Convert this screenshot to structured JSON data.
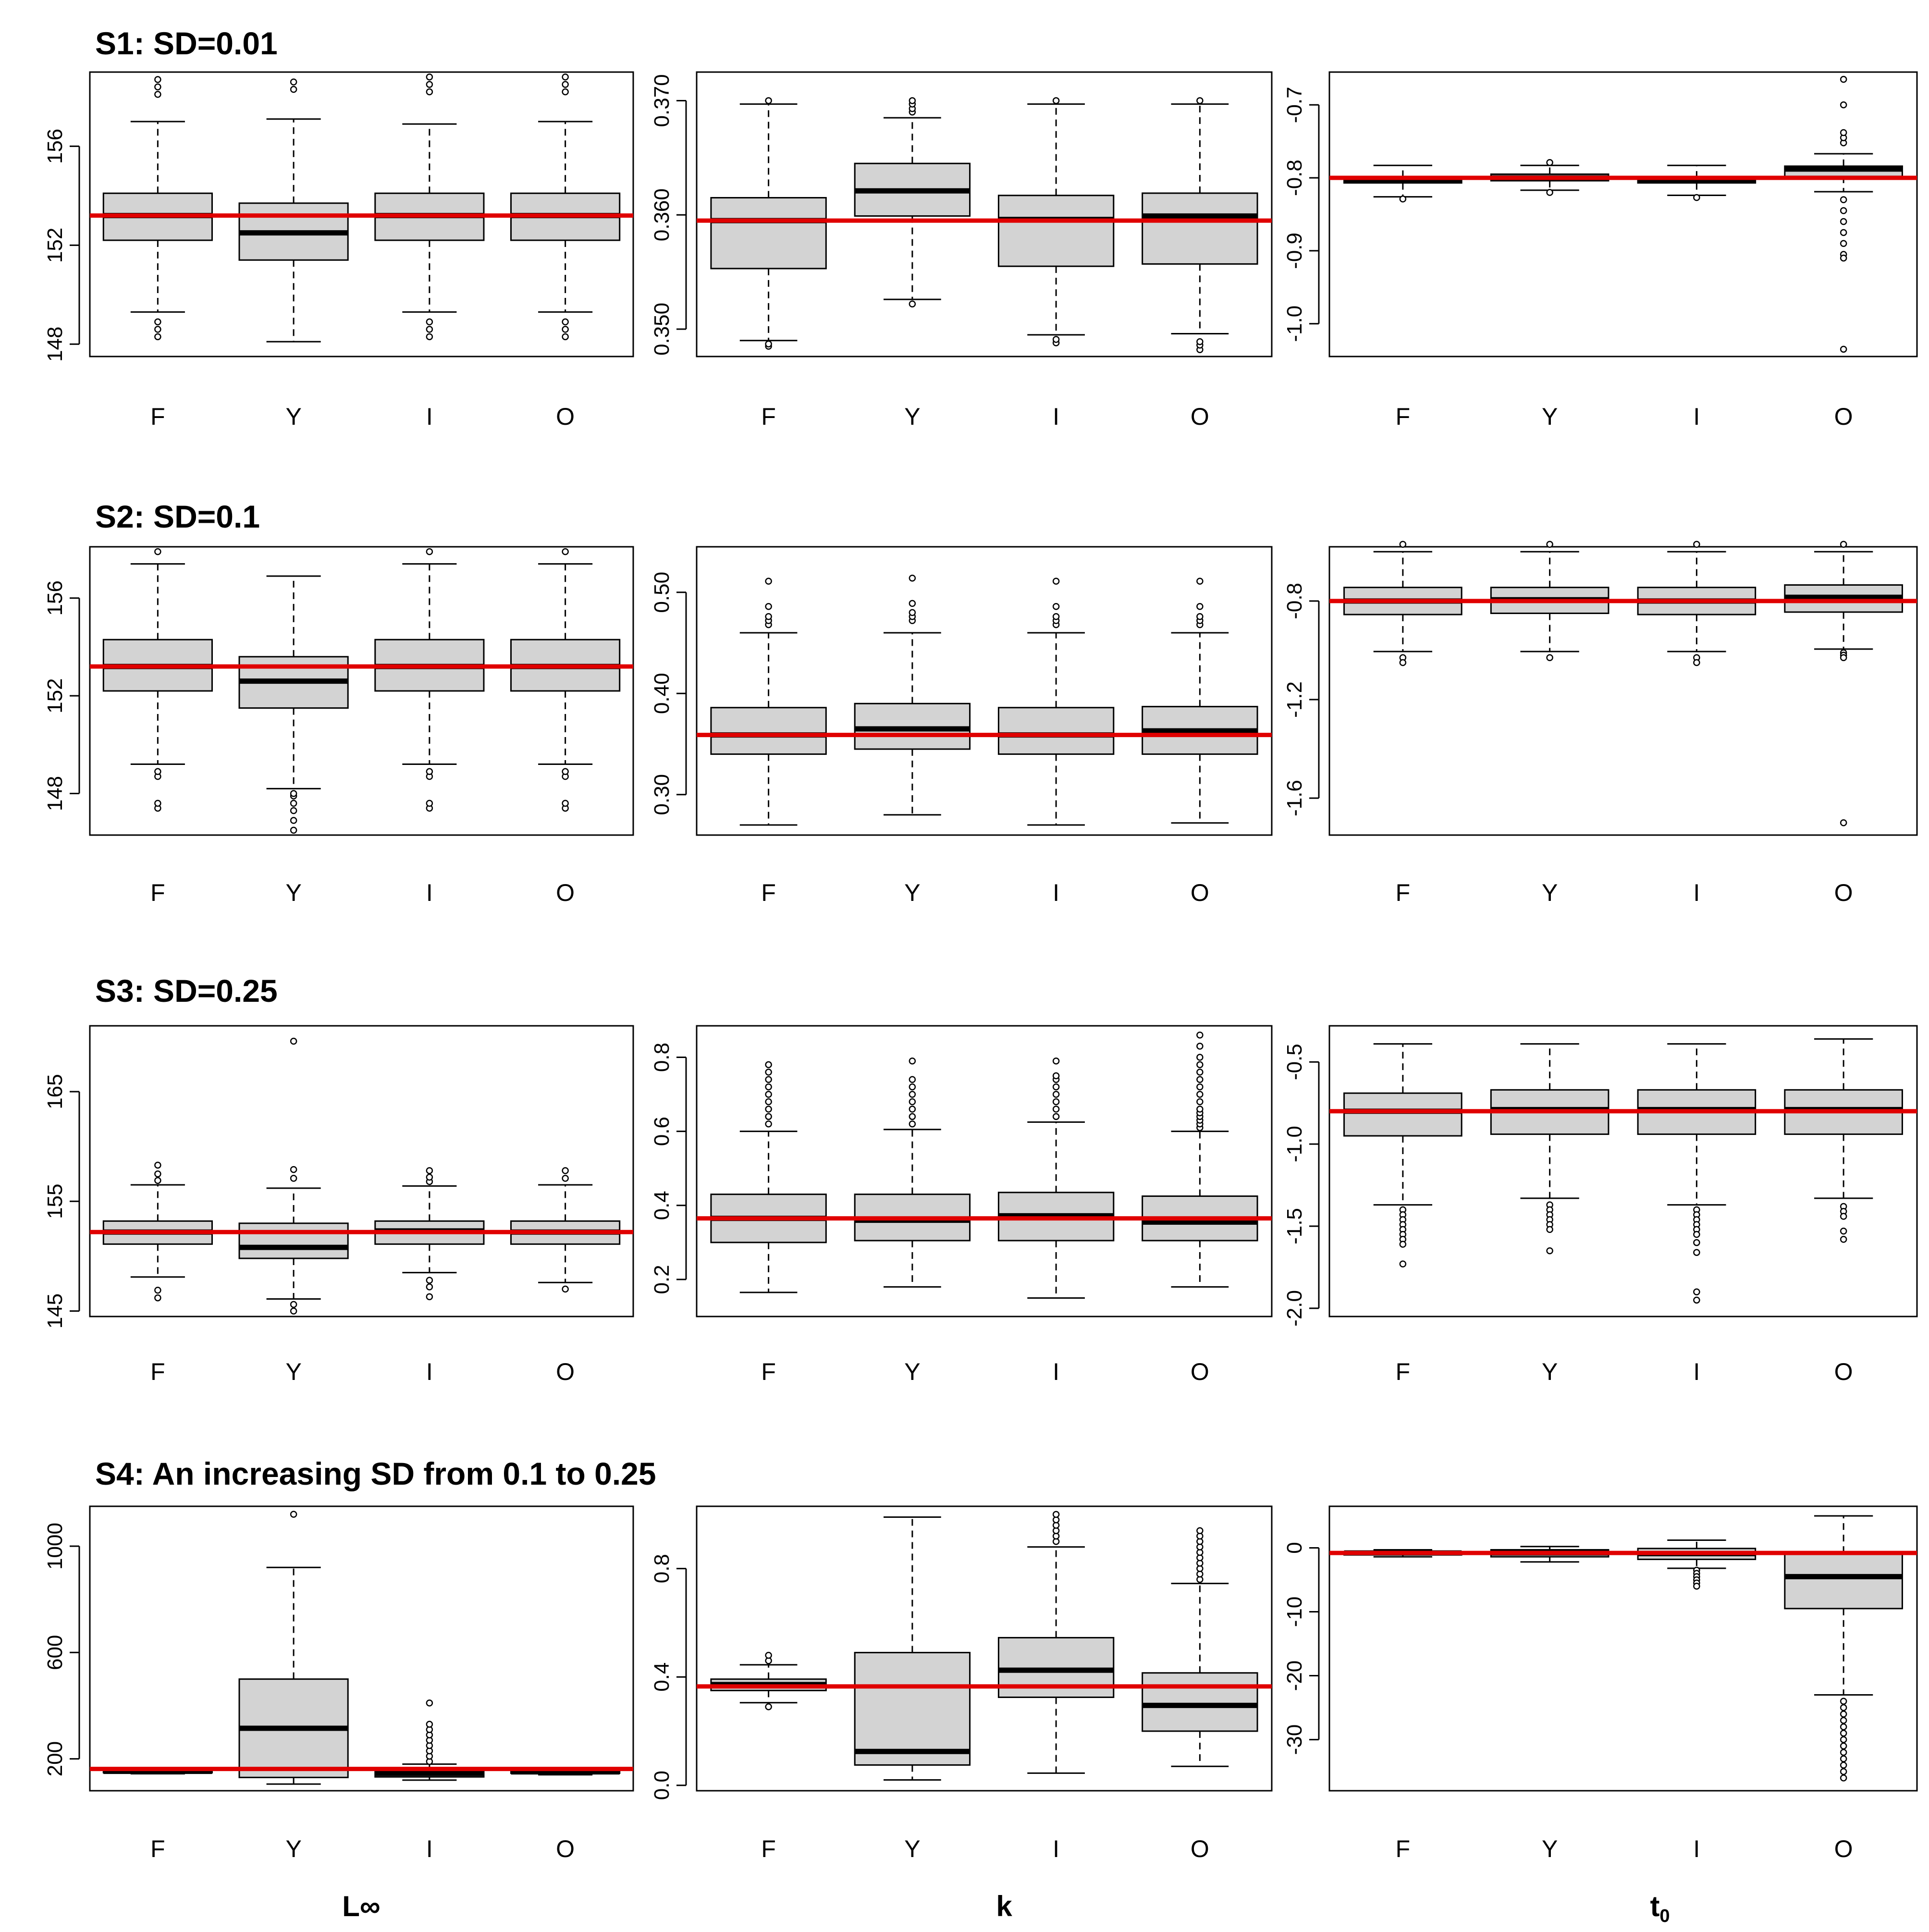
{
  "colors": {
    "box_fill": "#d3d3d3",
    "reference_line": "#e00000",
    "ink": "#000000"
  },
  "column_labels": {
    "linf": "L∞",
    "k": "k",
    "t0": "t",
    "t0_subscript": "0"
  },
  "chart_data": [
    {
      "type": "box",
      "scenario_title": "S1: SD=0.01",
      "categories": [
        "F",
        "Y",
        "I",
        "O"
      ],
      "ylim": [
        147.5,
        159
      ],
      "yticks": [
        148,
        152,
        156
      ],
      "ytick_labels": [
        "148",
        "152",
        "156"
      ],
      "reference": 153.2,
      "boxes": [
        {
          "q1": 152.2,
          "median": 153.2,
          "q3": 154.1,
          "lo": 149.3,
          "hi": 157.0,
          "outliers": [
            148.3,
            148.6,
            148.9,
            158.1,
            158.4,
            158.7
          ]
        },
        {
          "q1": 151.4,
          "median": 152.5,
          "q3": 153.7,
          "lo": 148.1,
          "hi": 157.1,
          "outliers": [
            158.3,
            158.6
          ]
        },
        {
          "q1": 152.2,
          "median": 153.2,
          "q3": 154.1,
          "lo": 149.3,
          "hi": 156.9,
          "outliers": [
            148.3,
            148.6,
            148.9,
            158.2,
            158.5,
            158.8
          ]
        },
        {
          "q1": 152.2,
          "median": 153.2,
          "q3": 154.1,
          "lo": 149.3,
          "hi": 157.0,
          "outliers": [
            148.3,
            148.6,
            148.9,
            158.2,
            158.5,
            158.8
          ]
        }
      ]
    },
    {
      "type": "box",
      "categories": [
        "F",
        "Y",
        "I",
        "O"
      ],
      "ylim": [
        0.3476,
        0.3725
      ],
      "yticks": [
        0.35,
        0.36,
        0.37
      ],
      "ytick_labels": [
        "0.350",
        "0.360",
        "0.370"
      ],
      "reference": 0.3595,
      "boxes": [
        {
          "q1": 0.3553,
          "median": 0.3595,
          "q3": 0.3615,
          "lo": 0.349,
          "hi": 0.3697,
          "outliers": [
            0.3485,
            0.3487,
            0.37
          ]
        },
        {
          "q1": 0.3599,
          "median": 0.3621,
          "q3": 0.3645,
          "lo": 0.3526,
          "hi": 0.3685,
          "outliers": [
            0.3522,
            0.369,
            0.3693,
            0.3697,
            0.37
          ]
        },
        {
          "q1": 0.3555,
          "median": 0.3596,
          "q3": 0.3617,
          "lo": 0.3495,
          "hi": 0.3697,
          "outliers": [
            0.3488,
            0.3491,
            0.37
          ]
        },
        {
          "q1": 0.3557,
          "median": 0.3599,
          "q3": 0.3619,
          "lo": 0.3496,
          "hi": 0.3697,
          "outliers": [
            0.3482,
            0.3486,
            0.3489,
            0.37
          ]
        }
      ]
    },
    {
      "type": "box",
      "categories": [
        "F",
        "Y",
        "I",
        "O"
      ],
      "ylim": [
        -1.045,
        -0.655
      ],
      "yticks": [
        -1.0,
        -0.9,
        -0.8,
        -0.7
      ],
      "ytick_labels": [
        "-1.0",
        "-0.9",
        "-0.8",
        "-0.7"
      ],
      "reference": -0.8,
      "boxes": [
        {
          "q1": -0.807,
          "median": -0.803,
          "q3": -0.799,
          "lo": -0.826,
          "hi": -0.783,
          "outliers": [
            -0.829
          ]
        },
        {
          "q1": -0.804,
          "median": -0.8,
          "q3": -0.795,
          "lo": -0.817,
          "hi": -0.783,
          "outliers": [
            -0.82,
            -0.779
          ]
        },
        {
          "q1": -0.807,
          "median": -0.803,
          "q3": -0.8,
          "lo": -0.824,
          "hi": -0.783,
          "outliers": [
            -0.827
          ]
        },
        {
          "q1": -0.798,
          "median": -0.788,
          "q3": -0.784,
          "lo": -0.819,
          "hi": -0.767,
          "outliers": [
            -0.83,
            -0.845,
            -0.86,
            -0.875,
            -0.89,
            -0.905,
            -0.91,
            -0.752,
            -0.745,
            -0.738,
            -0.7,
            -0.665,
            -1.035
          ]
        }
      ]
    },
    {
      "type": "box",
      "scenario_title": "S2: SD=0.1",
      "categories": [
        "F",
        "Y",
        "I",
        "O"
      ],
      "ylim": [
        146.3,
        158.1
      ],
      "yticks": [
        148,
        152,
        156
      ],
      "ytick_labels": [
        "148",
        "152",
        "156"
      ],
      "reference": 153.2,
      "boxes": [
        {
          "q1": 152.2,
          "median": 153.2,
          "q3": 154.3,
          "lo": 149.2,
          "hi": 157.4,
          "outliers": [
            147.4,
            147.6,
            148.7,
            148.9,
            157.9
          ]
        },
        {
          "q1": 151.5,
          "median": 152.6,
          "q3": 153.6,
          "lo": 148.2,
          "hi": 156.9,
          "outliers": [
            146.5,
            146.9,
            147.3,
            147.6,
            147.9,
            148.0
          ]
        },
        {
          "q1": 152.2,
          "median": 153.2,
          "q3": 154.3,
          "lo": 149.2,
          "hi": 157.4,
          "outliers": [
            147.4,
            147.6,
            148.7,
            148.9,
            157.9
          ]
        },
        {
          "q1": 152.2,
          "median": 153.2,
          "q3": 154.3,
          "lo": 149.2,
          "hi": 157.4,
          "outliers": [
            147.4,
            147.6,
            148.7,
            148.9,
            157.9
          ]
        }
      ]
    },
    {
      "type": "box",
      "categories": [
        "F",
        "Y",
        "I",
        "O"
      ],
      "ylim": [
        0.26,
        0.545
      ],
      "yticks": [
        0.3,
        0.4,
        0.5
      ],
      "ytick_labels": [
        "0.30",
        "0.40",
        "0.50"
      ],
      "reference": 0.359,
      "boxes": [
        {
          "q1": 0.34,
          "median": 0.359,
          "q3": 0.386,
          "lo": 0.27,
          "hi": 0.46,
          "outliers": [
            0.468,
            0.472,
            0.476,
            0.486,
            0.511
          ]
        },
        {
          "q1": 0.345,
          "median": 0.365,
          "q3": 0.39,
          "lo": 0.28,
          "hi": 0.46,
          "outliers": [
            0.472,
            0.476,
            0.48,
            0.489,
            0.514
          ]
        },
        {
          "q1": 0.34,
          "median": 0.359,
          "q3": 0.386,
          "lo": 0.27,
          "hi": 0.46,
          "outliers": [
            0.468,
            0.472,
            0.476,
            0.486,
            0.511
          ]
        },
        {
          "q1": 0.34,
          "median": 0.363,
          "q3": 0.387,
          "lo": 0.272,
          "hi": 0.46,
          "outliers": [
            0.468,
            0.472,
            0.476,
            0.486,
            0.511
          ]
        }
      ]
    },
    {
      "type": "box",
      "categories": [
        "F",
        "Y",
        "I",
        "O"
      ],
      "ylim": [
        -1.75,
        -0.58
      ],
      "yticks": [
        -1.6,
        -1.2,
        -0.8
      ],
      "ytick_labels": [
        "-1.6",
        "-1.2",
        "-0.8"
      ],
      "reference": -0.8,
      "boxes": [
        {
          "q1": -0.855,
          "median": -0.8,
          "q3": -0.745,
          "lo": -1.005,
          "hi": -0.6,
          "outliers": [
            -1.03,
            -1.05,
            -0.57
          ]
        },
        {
          "q1": -0.85,
          "median": -0.795,
          "q3": -0.745,
          "lo": -1.005,
          "hi": -0.6,
          "outliers": [
            -1.03,
            -0.57
          ]
        },
        {
          "q1": -0.855,
          "median": -0.8,
          "q3": -0.745,
          "lo": -1.005,
          "hi": -0.6,
          "outliers": [
            -1.03,
            -1.05,
            -0.57
          ]
        },
        {
          "q1": -0.845,
          "median": -0.785,
          "q3": -0.735,
          "lo": -0.995,
          "hi": -0.6,
          "outliers": [
            -1.01,
            -1.02,
            -1.03,
            -0.57,
            -1.7
          ]
        }
      ]
    },
    {
      "type": "box",
      "scenario_title": "S3: SD=0.25",
      "categories": [
        "F",
        "Y",
        "I",
        "O"
      ],
      "ylim": [
        144.5,
        171
      ],
      "yticks": [
        145,
        155,
        165
      ],
      "ytick_labels": [
        "145",
        "155",
        "165"
      ],
      "reference": 152.2,
      "boxes": [
        {
          "q1": 151.1,
          "median": 152.2,
          "q3": 153.2,
          "lo": 148.1,
          "hi": 156.5,
          "outliers": [
            146.2,
            146.9,
            156.9,
            157.5,
            158.3
          ]
        },
        {
          "q1": 149.8,
          "median": 150.8,
          "q3": 153.0,
          "lo": 146.1,
          "hi": 156.2,
          "outliers": [
            145.0,
            145.6,
            157.1,
            157.9,
            169.6
          ]
        },
        {
          "q1": 151.1,
          "median": 152.3,
          "q3": 153.2,
          "lo": 148.5,
          "hi": 156.4,
          "outliers": [
            146.3,
            147.2,
            147.8,
            156.8,
            157.2,
            157.8
          ]
        },
        {
          "q1": 151.1,
          "median": 152.2,
          "q3": 153.2,
          "lo": 147.6,
          "hi": 156.5,
          "outliers": [
            147.0,
            157.1,
            157.8
          ]
        }
      ]
    },
    {
      "type": "box",
      "categories": [
        "F",
        "Y",
        "I",
        "O"
      ],
      "ylim": [
        0.1,
        0.885
      ],
      "yticks": [
        0.2,
        0.4,
        0.6,
        0.8
      ],
      "ytick_labels": [
        "0.2",
        "0.4",
        "0.6",
        "0.8"
      ],
      "reference": 0.365,
      "boxes": [
        {
          "q1": 0.3,
          "median": 0.365,
          "q3": 0.43,
          "lo": 0.165,
          "hi": 0.6,
          "outliers": [
            0.62,
            0.64,
            0.66,
            0.68,
            0.7,
            0.72,
            0.74,
            0.76,
            0.78
          ]
        },
        {
          "q1": 0.305,
          "median": 0.36,
          "q3": 0.43,
          "lo": 0.18,
          "hi": 0.605,
          "outliers": [
            0.62,
            0.64,
            0.66,
            0.68,
            0.7,
            0.72,
            0.74,
            0.79
          ]
        },
        {
          "q1": 0.305,
          "median": 0.372,
          "q3": 0.435,
          "lo": 0.15,
          "hi": 0.625,
          "outliers": [
            0.64,
            0.66,
            0.68,
            0.7,
            0.72,
            0.74,
            0.75,
            0.79
          ]
        },
        {
          "q1": 0.305,
          "median": 0.355,
          "q3": 0.425,
          "lo": 0.18,
          "hi": 0.6,
          "outliers": [
            0.61,
            0.62,
            0.63,
            0.64,
            0.65,
            0.66,
            0.68,
            0.7,
            0.72,
            0.74,
            0.76,
            0.78,
            0.8,
            0.83,
            0.86
          ]
        }
      ]
    },
    {
      "type": "box",
      "categories": [
        "F",
        "Y",
        "I",
        "O"
      ],
      "ylim": [
        -2.05,
        -0.28
      ],
      "yticks": [
        -2.0,
        -1.5,
        -1.0,
        -0.5
      ],
      "ytick_labels": [
        "-2.0",
        "-1.5",
        "-1.0",
        "-0.5"
      ],
      "reference": -0.8,
      "boxes": [
        {
          "q1": -0.95,
          "median": -0.8,
          "q3": -0.69,
          "lo": -1.37,
          "hi": -0.39,
          "outliers": [
            -1.4,
            -1.43,
            -1.46,
            -1.49,
            -1.52,
            -1.55,
            -1.58,
            -1.61,
            -1.73
          ]
        },
        {
          "q1": -0.94,
          "median": -0.79,
          "q3": -0.67,
          "lo": -1.33,
          "hi": -0.39,
          "outliers": [
            -1.37,
            -1.4,
            -1.43,
            -1.46,
            -1.49,
            -1.52,
            -1.65
          ]
        },
        {
          "q1": -0.94,
          "median": -0.79,
          "q3": -0.67,
          "lo": -1.37,
          "hi": -0.39,
          "outliers": [
            -1.4,
            -1.43,
            -1.46,
            -1.49,
            -1.52,
            -1.55,
            -1.6,
            -1.66,
            -1.9,
            -1.95
          ]
        },
        {
          "q1": -0.94,
          "median": -0.79,
          "q3": -0.67,
          "lo": -1.33,
          "hi": -0.36,
          "outliers": [
            -1.38,
            -1.41,
            -1.44,
            -1.53,
            -1.58
          ]
        }
      ]
    },
    {
      "type": "box",
      "scenario_title": "S4: An increasing SD from 0.1 to 0.25",
      "categories": [
        "F",
        "Y",
        "I",
        "O"
      ],
      "ylim": [
        80,
        1150
      ],
      "yticks": [
        200,
        600,
        1000
      ],
      "ytick_labels": [
        "200",
        "600",
        "1000"
      ],
      "reference": 162,
      "boxes": [
        {
          "q1": 148,
          "median": 153,
          "q3": 157,
          "lo": 144,
          "hi": 160,
          "outliers": []
        },
        {
          "q1": 130,
          "median": 315,
          "q3": 500,
          "lo": 105,
          "hi": 920,
          "outliers": [
            1120
          ]
        },
        {
          "q1": 132,
          "median": 145,
          "q3": 162,
          "lo": 120,
          "hi": 180,
          "outliers": [
            190,
            210,
            230,
            250,
            270,
            290,
            310,
            330,
            410
          ]
        },
        {
          "q1": 146,
          "median": 151,
          "q3": 156,
          "lo": 140,
          "hi": 162,
          "outliers": []
        }
      ]
    },
    {
      "type": "box",
      "categories": [
        "F",
        "Y",
        "I",
        "O"
      ],
      "ylim": [
        -0.02,
        1.03
      ],
      "yticks": [
        0.0,
        0.4,
        0.8
      ],
      "ytick_labels": [
        "0.0",
        "0.4",
        "0.8"
      ],
      "reference": 0.365,
      "boxes": [
        {
          "q1": 0.35,
          "median": 0.372,
          "q3": 0.392,
          "lo": 0.305,
          "hi": 0.445,
          "outliers": [
            0.29,
            0.46,
            0.48
          ]
        },
        {
          "q1": 0.075,
          "median": 0.125,
          "q3": 0.49,
          "lo": 0.02,
          "hi": 0.99,
          "outliers": []
        },
        {
          "q1": 0.325,
          "median": 0.425,
          "q3": 0.545,
          "lo": 0.045,
          "hi": 0.88,
          "outliers": [
            0.9,
            0.92,
            0.94,
            0.96,
            0.98,
            1.0
          ]
        },
        {
          "q1": 0.2,
          "median": 0.295,
          "q3": 0.415,
          "lo": 0.07,
          "hi": 0.745,
          "outliers": [
            0.76,
            0.78,
            0.8,
            0.82,
            0.84,
            0.86,
            0.88,
            0.9,
            0.92,
            0.94
          ]
        }
      ]
    },
    {
      "type": "box",
      "categories": [
        "F",
        "Y",
        "I",
        "O"
      ],
      "ylim": [
        -38,
        6.5
      ],
      "yticks": [
        -30,
        -20,
        -10,
        0
      ],
      "ytick_labels": [
        "-30",
        "-20",
        "-10",
        "0"
      ],
      "reference": -0.8,
      "boxes": [
        {
          "q1": -1.1,
          "median": -0.8,
          "q3": -0.6,
          "lo": -1.4,
          "hi": -0.3,
          "outliers": []
        },
        {
          "q1": -1.4,
          "median": -0.8,
          "q3": -0.3,
          "lo": -2.2,
          "hi": 0.2,
          "outliers": []
        },
        {
          "q1": -1.8,
          "median": -0.9,
          "q3": -0.1,
          "lo": -3.2,
          "hi": 1.2,
          "outliers": [
            -3.5,
            -4.0,
            -4.5,
            -5.0,
            -5.5,
            -6.0
          ]
        },
        {
          "q1": -9.5,
          "median": -4.5,
          "q3": -0.8,
          "lo": -23.0,
          "hi": 5.0,
          "outliers": [
            -24,
            -25,
            -26,
            -27,
            -28,
            -29,
            -30,
            -31,
            -32,
            -33,
            -34,
            -35,
            -36
          ]
        }
      ]
    }
  ]
}
